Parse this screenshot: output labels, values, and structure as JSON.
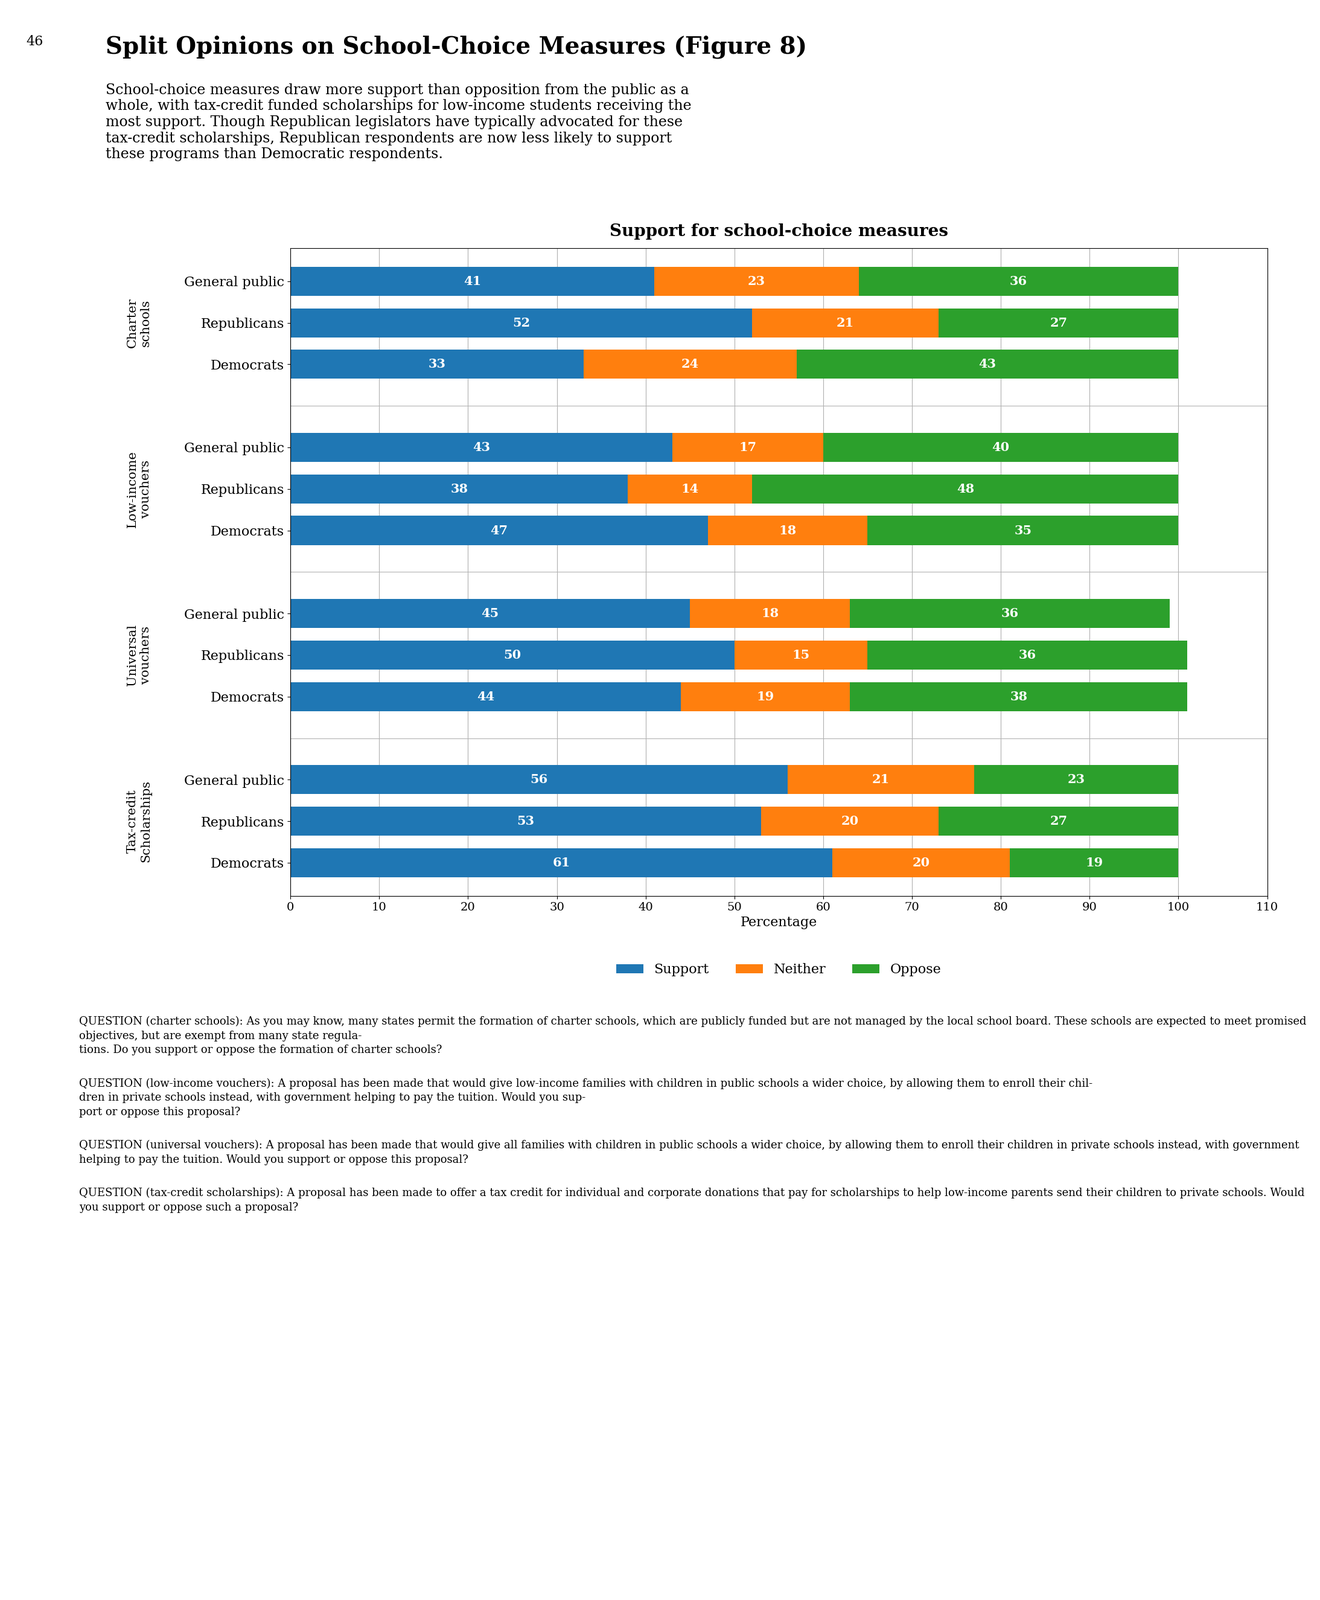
{
  "chart_data": {
    "type": "bar",
    "orientation": "horizontal",
    "stacked": true,
    "data_labels": true,
    "grid": true,
    "legend": "upper center",
    "suptitle": "Split Opinions on School-Choice Measures (Figure 8)",
    "subtitle": "School-choice measures draw more support than opposition from the public as a\nwhole, with tax-credit funded scholarships for low-income students receiving the\nmost support. Though Republican legislators have typically advocated for these\ntax-credit scholarships, Republican respondents are now less likely to support\nthese programs than Democratic respondents.",
    "title": "Support for school-choice measures",
    "page_number": "46",
    "xlabel": "Percentage",
    "xlim": [
      0,
      110
    ],
    "xticks": [
      0,
      10,
      20,
      30,
      40,
      50,
      60,
      70,
      80,
      90,
      100,
      110
    ],
    "groups": [
      {
        "label": "Charter\nschools",
        "categories": [
          "General public",
          "Republicans",
          "Democrats"
        ]
      },
      {
        "label": "Low-income\nvouchers",
        "categories": [
          "General public",
          "Republicans",
          "Democrats"
        ]
      },
      {
        "label": "Universal\nvouchers",
        "categories": [
          "General public",
          "Republicans",
          "Democrats"
        ]
      },
      {
        "label": "Tax-credit\nScholarships",
        "categories": [
          "General public",
          "Republicans",
          "Democrats"
        ]
      }
    ],
    "series": [
      {
        "name": "Support",
        "values": [
          41,
          52,
          33,
          43,
          38,
          47,
          45,
          50,
          44,
          56,
          53,
          61
        ]
      },
      {
        "name": "Neither",
        "values": [
          23,
          21,
          24,
          17,
          14,
          18,
          18,
          15,
          19,
          21,
          20,
          20
        ]
      },
      {
        "name": "Oppose",
        "values": [
          36,
          27,
          43,
          40,
          48,
          35,
          36,
          36,
          38,
          23,
          27,
          19
        ]
      }
    ],
    "footnotes": [
      "QUESTION (charter schools): As you may know, many states permit the formation of charter schools, which are publicly funded but are not managed by the local school board. These schools are expected to meet promised objectives, but are exempt from many state regula-\ntions. Do you support or oppose the formation of charter schools?",
      "QUESTION (low-income vouchers): A proposal has been made that would give low-income families with children in public schools a wider choice, by allowing them to enroll their chil-\ndren in private schools instead, with government helping to pay the tuition. Would you sup-\nport or oppose this proposal?",
      "QUESTION (universal vouchers): A proposal has been made that would give all families with children in public schools a wider choice, by allowing them to enroll their children in private schools instead, with government helping to pay the tuition. Would you support or oppose this proposal?",
      "QUESTION (tax-credit scholarships): A proposal has been made to offer a tax credit for individual and corporate donations that pay for scholarships to help low-income parents send their children to private schools. Would you support or oppose such a proposal?"
    ]
  }
}
